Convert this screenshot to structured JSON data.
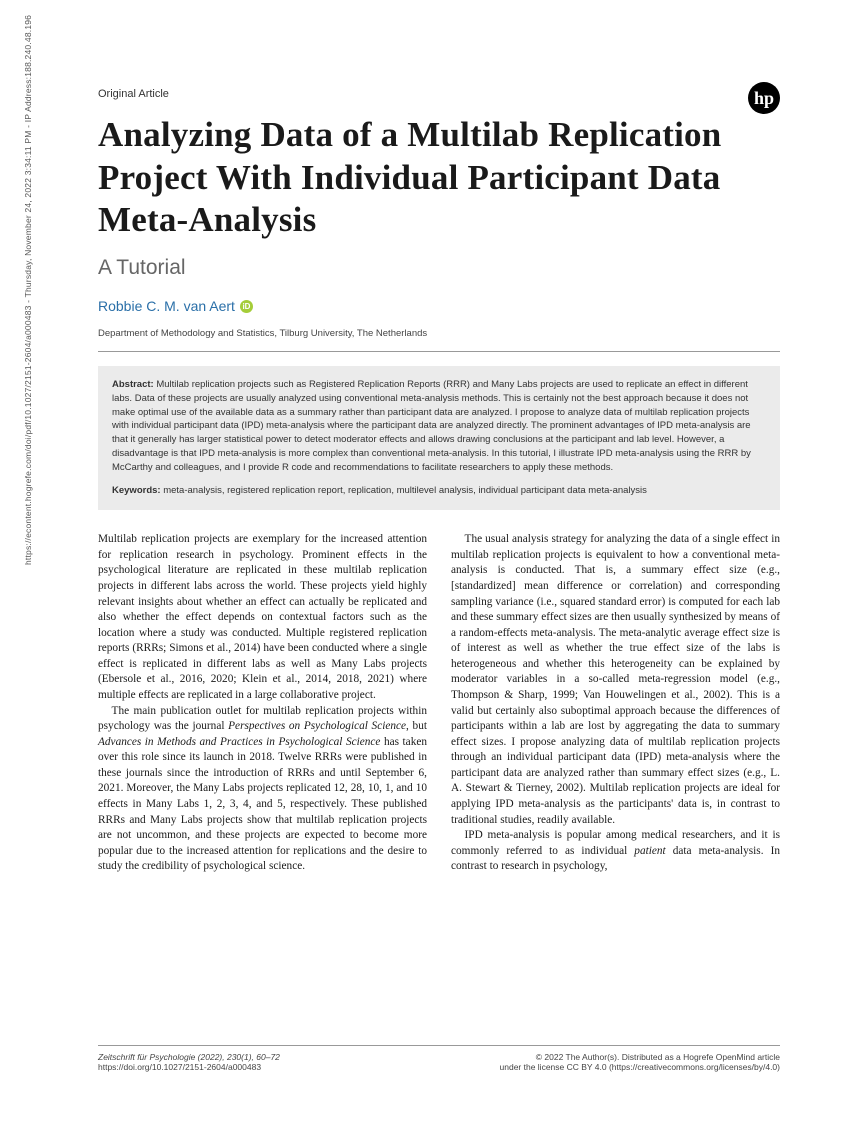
{
  "vertical_citation": "https://econtent.hogrefe.com/doi/pdf/10.1027/2151-2604/a000483 - Thursday, November 24, 2022 3:34:11 PM - IP Address:188.240.48.196",
  "article_type": "Original Article",
  "logo_text": "hp",
  "title": "Analyzing Data of a Multilab Replication Project With Individual Participant Data Meta-Analysis",
  "subtitle": "A Tutorial",
  "author": "Robbie C. M. van Aert",
  "affiliation": "Department of Methodology and Statistics, Tilburg University, The Netherlands",
  "abstract": {
    "label": "Abstract:",
    "text": "Multilab replication projects such as Registered Replication Reports (RRR) and Many Labs projects are used to replicate an effect in different labs. Data of these projects are usually analyzed using conventional meta-analysis methods. This is certainly not the best approach because it does not make optimal use of the available data as a summary rather than participant data are analyzed. I propose to analyze data of multilab replication projects with individual participant data (IPD) meta-analysis where the participant data are analyzed directly. The prominent advantages of IPD meta-analysis are that it generally has larger statistical power to detect moderator effects and allows drawing conclusions at the participant and lab level. However, a disadvantage is that IPD meta-analysis is more complex than conventional meta-analysis. In this tutorial, I illustrate IPD meta-analysis using the RRR by McCarthy and colleagues, and I provide R code and recommendations to facilitate researchers to apply these methods.",
    "keywords_label": "Keywords:",
    "keywords": "meta-analysis, registered replication report, replication, multilevel analysis, individual participant data meta-analysis"
  },
  "body": {
    "p1": "Multilab replication projects are exemplary for the increased attention for replication research in psychology. Prominent effects in the psychological literature are replicated in these multilab replication projects in different labs across the world. These projects yield highly relevant insights about whether an effect can actually be replicated and also whether the effect depends on contextual factors such as the location where a study was conducted. Multiple registered replication reports (RRRs; Simons et al., 2014) have been conducted where a single effect is replicated in different labs as well as Many Labs projects (Ebersole et al., 2016, 2020; Klein et al., 2014, 2018, 2021) where multiple effects are replicated in a large collaborative project.",
    "p2a": "The main publication outlet for multilab replication projects within psychology was the journal ",
    "p2_i1": "Perspectives on Psychological Science",
    "p2b": ", but ",
    "p2_i2": "Advances in Methods and Practices in Psychological Science",
    "p2c": " has taken over this role since its launch in 2018. Twelve RRRs were published in these journals since the introduction of RRRs and until September 6, 2021. Moreover, the Many Labs projects replicated 12, 28, 10, 1, and 10 effects in Many Labs 1, 2, 3, 4, and 5, respectively. These published RRRs and Many Labs projects show that multilab replication projects are not uncommon, and these projects are expected to become more popular due to the increased attention for replications and the desire to study the credibility of psychological science.",
    "p3": "The usual analysis strategy for analyzing the data of a single effect in multilab replication projects is equivalent to how a conventional meta-analysis is conducted. That is, a summary effect size (e.g., [standardized] mean difference or correlation) and corresponding sampling variance (i.e., squared standard error) is computed for each lab and these summary effect sizes are then usually synthesized by means of a random-effects meta-analysis. The meta-analytic average effect size is of interest as well as whether the true effect size of the labs is heterogeneous and whether this heterogeneity can be explained by moderator variables in a so-called meta-regression model (e.g., Thompson & Sharp, 1999; Van Houwelingen et al., 2002). This is a valid but certainly also suboptimal approach because the differences of participants within a lab are lost by aggregating the data to summary effect sizes. I propose analyzing data of multilab replication projects through an individual participant data (IPD) meta-analysis where the participant data are analyzed rather than summary effect sizes (e.g., L. A. Stewart & Tierney, 2002). Multilab replication projects are ideal for applying IPD meta-analysis as the participants' data is, in contrast to traditional studies, readily available.",
    "p4a": "IPD meta-analysis is popular among medical researchers, and it is commonly referred to as individual ",
    "p4_i1": "patient",
    "p4b": " data meta-analysis. In contrast to research in psychology,"
  },
  "footer": {
    "left_line1": "Zeitschrift für Psychologie (2022), 230(1), 60–72",
    "left_line2": "https://doi.org/10.1027/2151-2604/a000483",
    "right_line1": "© 2022 The Author(s). Distributed as a Hogrefe OpenMind article",
    "right_line2": "under the license CC BY 4.0 (https://creativecommons.org/licenses/by/4.0)"
  }
}
